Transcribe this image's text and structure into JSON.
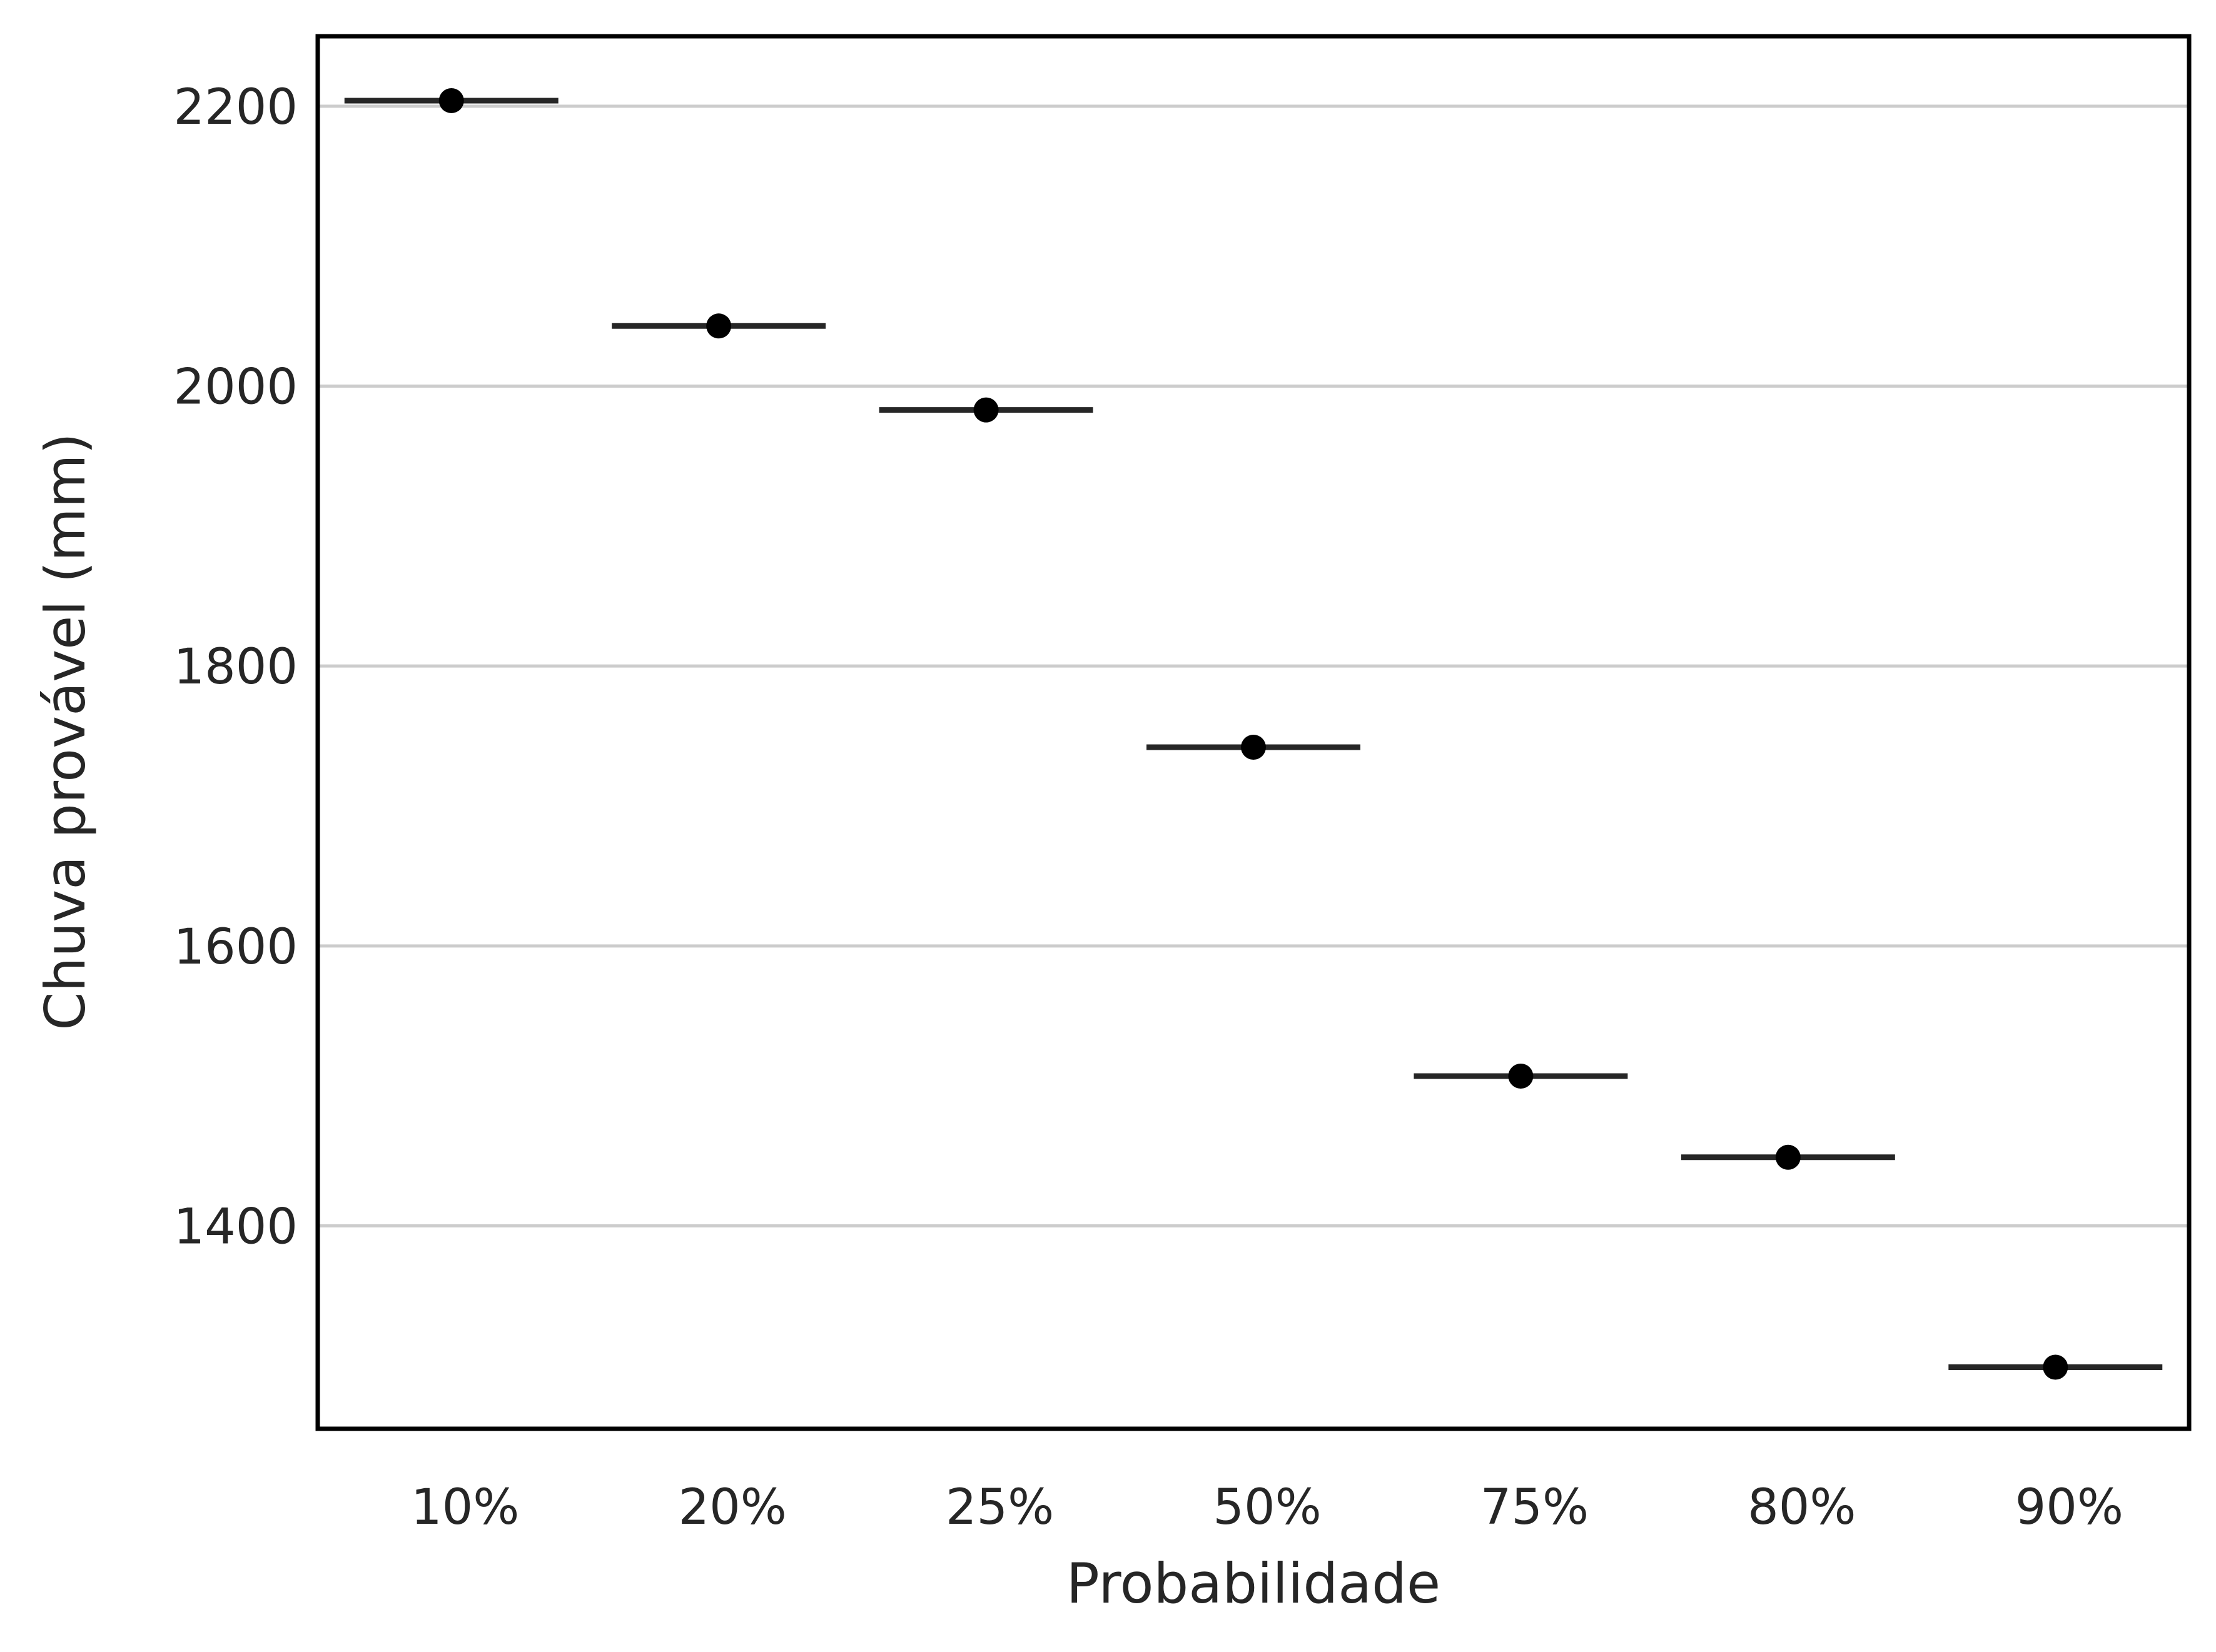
{
  "chart_data": {
    "type": "scatter",
    "title": "",
    "xlabel": "Probabilidade",
    "ylabel": "Chuva provável (mm)",
    "categories": [
      "10%",
      "20%",
      "25%",
      "50%",
      "75%",
      "80%",
      "90%"
    ],
    "values": [
      2204,
      2043,
      1983,
      1742,
      1507,
      1449,
      1299
    ],
    "ylim": [
      1255,
      2250
    ],
    "yticks": [
      "1400",
      "1600",
      "1800",
      "2000",
      "2200"
    ],
    "ytick_values": [
      1400,
      1600,
      1800,
      2000,
      2200
    ],
    "grid": "horizontal",
    "legend": "none",
    "marker_color": "#000000",
    "bar_color": "#262626"
  }
}
